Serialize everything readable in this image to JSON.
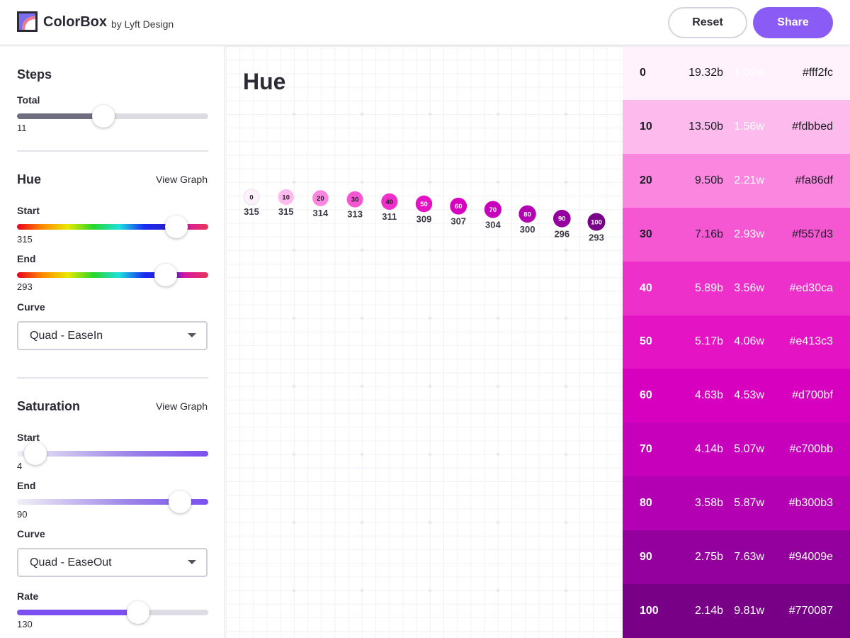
{
  "header": {
    "brand": "ColorBox",
    "brand_sub": "by Lyft Design",
    "reset_label": "Reset",
    "share_label": "Share",
    "accent": "#8a5cf5"
  },
  "sidebar": {
    "steps": {
      "title": "Steps",
      "total_label": "Total",
      "total_value": "11"
    },
    "hue": {
      "title": "Hue",
      "view_graph": "View Graph",
      "start_label": "Start",
      "start_value": "315",
      "end_label": "End",
      "end_value": "293",
      "curve_label": "Curve",
      "curve_value": "Quad - EaseIn"
    },
    "saturation": {
      "title": "Saturation",
      "view_graph": "View Graph",
      "start_label": "Start",
      "start_value": "4",
      "end_label": "End",
      "end_value": "90",
      "curve_label": "Curve",
      "curve_value": "Quad - EaseOut",
      "rate_label": "Rate",
      "rate_value": "130"
    }
  },
  "graph": {
    "title": "Hue"
  },
  "chart_data": {
    "type": "scatter",
    "title": "Hue",
    "steps": [
      "0",
      "10",
      "20",
      "30",
      "40",
      "50",
      "60",
      "70",
      "80",
      "90",
      "100"
    ],
    "hue_values": [
      315,
      315,
      314,
      313,
      311,
      309,
      307,
      304,
      300,
      296,
      293
    ],
    "point_colors": [
      "#fff2fc",
      "#fdbbed",
      "#fa86df",
      "#f557d3",
      "#ed30ca",
      "#e413c3",
      "#d700bf",
      "#c700bb",
      "#b300b3",
      "#94009e",
      "#770087"
    ],
    "ylim": [
      293,
      315
    ],
    "grid": true
  },
  "colors": [
    {
      "step": "0",
      "black": "19.32b",
      "white": "1.09w",
      "hex": "#fff2fc"
    },
    {
      "step": "10",
      "black": "13.50b",
      "white": "1.56w",
      "hex": "#fdbbed"
    },
    {
      "step": "20",
      "black": "9.50b",
      "white": "2.21w",
      "hex": "#fa86df"
    },
    {
      "step": "30",
      "black": "7.16b",
      "white": "2.93w",
      "hex": "#f557d3"
    },
    {
      "step": "40",
      "black": "5.89b",
      "white": "3.56w",
      "hex": "#ed30ca"
    },
    {
      "step": "50",
      "black": "5.17b",
      "white": "4.06w",
      "hex": "#e413c3"
    },
    {
      "step": "60",
      "black": "4.63b",
      "white": "4.53w",
      "hex": "#d700bf"
    },
    {
      "step": "70",
      "black": "4.14b",
      "white": "5.07w",
      "hex": "#c700bb"
    },
    {
      "step": "80",
      "black": "3.58b",
      "white": "5.87w",
      "hex": "#b300b3"
    },
    {
      "step": "90",
      "black": "2.75b",
      "white": "7.63w",
      "hex": "#94009e"
    },
    {
      "step": "100",
      "black": "2.14b",
      "white": "9.81w",
      "hex": "#770087"
    }
  ]
}
